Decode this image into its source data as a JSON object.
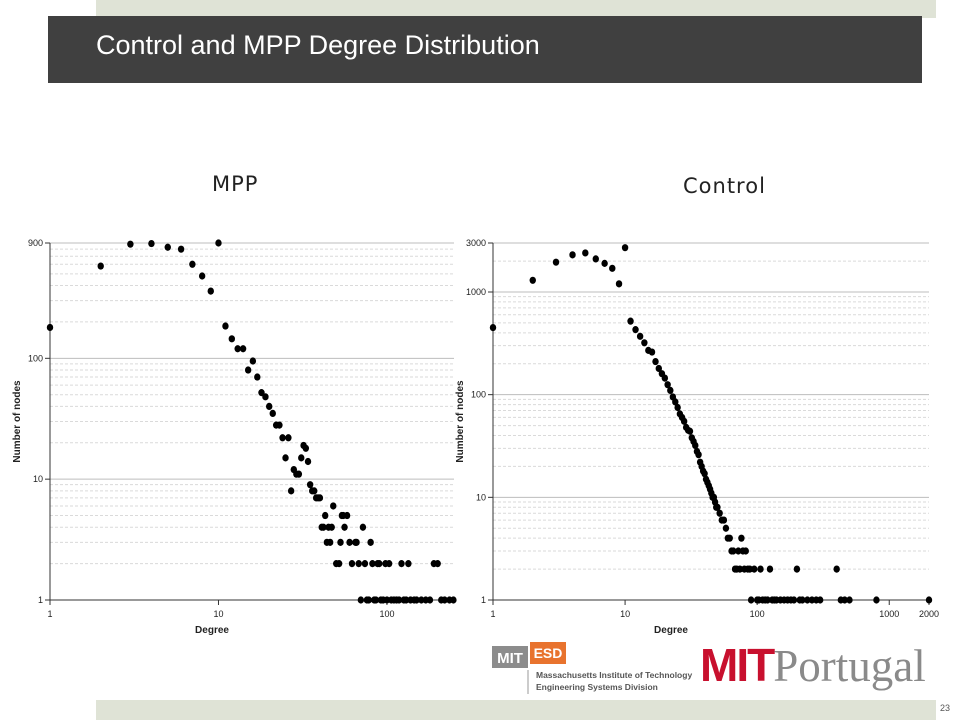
{
  "slide": {
    "title": "Control and MPP Degree Distribution",
    "page_number": "23"
  },
  "panels": {
    "left_label": "MPP",
    "right_label": "Control"
  },
  "logos": {
    "esd_mit": "MIT",
    "esd_esd": "ESD",
    "esd_line1": "Massachusetts Institute of Technology",
    "esd_line2": "Engineering Systems Division",
    "mitp_mit": "MIT",
    "mitp_portugal": "Portugal"
  },
  "colors": {
    "title_bar": "#404040",
    "strip": "#dfe3d6",
    "esd_orange": "#e8732e",
    "mit_red": "#c8102e"
  },
  "chart_data": [
    {
      "type": "scatter",
      "panel_label": "MPP",
      "xlabel": "Degree",
      "ylabel": "Number of nodes",
      "x_scale": "log",
      "y_scale": "log",
      "xlim": [
        1,
        250
      ],
      "ylim": [
        1,
        900
      ],
      "x_ticks": [
        "1",
        "10",
        "100"
      ],
      "y_ticks": [
        "1",
        "10",
        "100",
        "900"
      ],
      "grid": true,
      "points": [
        [
          1,
          180
        ],
        [
          2,
          580
        ],
        [
          3,
          880
        ],
        [
          4,
          890
        ],
        [
          5,
          830
        ],
        [
          6,
          800
        ],
        [
          7,
          600
        ],
        [
          8,
          480
        ],
        [
          9,
          360
        ],
        [
          10,
          900
        ],
        [
          11,
          185
        ],
        [
          12,
          145
        ],
        [
          13,
          120
        ],
        [
          14,
          120
        ],
        [
          15,
          80
        ],
        [
          16,
          95
        ],
        [
          17,
          70
        ],
        [
          18,
          52
        ],
        [
          19,
          48
        ],
        [
          20,
          40
        ],
        [
          21,
          35
        ],
        [
          22,
          28
        ],
        [
          23,
          28
        ],
        [
          24,
          22
        ],
        [
          25,
          15
        ],
        [
          26,
          22
        ],
        [
          27,
          8
        ],
        [
          28,
          12
        ],
        [
          29,
          11
        ],
        [
          30,
          11
        ],
        [
          31,
          15
        ],
        [
          32,
          19
        ],
        [
          33,
          18
        ],
        [
          34,
          14
        ],
        [
          35,
          9
        ],
        [
          36,
          8
        ],
        [
          37,
          8
        ],
        [
          38,
          7
        ],
        [
          39,
          7
        ],
        [
          40,
          7
        ],
        [
          41,
          4
        ],
        [
          42,
          4
        ],
        [
          43,
          5
        ],
        [
          44,
          3
        ],
        [
          45,
          4
        ],
        [
          46,
          3
        ],
        [
          47,
          4
        ],
        [
          48,
          6
        ],
        [
          50,
          2
        ],
        [
          52,
          2
        ],
        [
          53,
          3
        ],
        [
          54,
          5
        ],
        [
          55,
          5
        ],
        [
          56,
          4
        ],
        [
          58,
          5
        ],
        [
          60,
          3
        ],
        [
          62,
          2
        ],
        [
          65,
          3
        ],
        [
          66,
          3
        ],
        [
          68,
          2
        ],
        [
          70,
          1
        ],
        [
          72,
          4
        ],
        [
          74,
          2
        ],
        [
          76,
          1
        ],
        [
          78,
          1
        ],
        [
          80,
          3
        ],
        [
          82,
          2
        ],
        [
          84,
          1
        ],
        [
          86,
          1
        ],
        [
          88,
          2
        ],
        [
          90,
          2
        ],
        [
          92,
          1
        ],
        [
          95,
          1
        ],
        [
          98,
          2
        ],
        [
          100,
          1
        ],
        [
          103,
          2
        ],
        [
          106,
          1
        ],
        [
          110,
          1
        ],
        [
          114,
          1
        ],
        [
          118,
          1
        ],
        [
          122,
          2
        ],
        [
          126,
          1
        ],
        [
          130,
          1
        ],
        [
          134,
          2
        ],
        [
          138,
          1
        ],
        [
          145,
          1
        ],
        [
          150,
          1
        ],
        [
          160,
          1
        ],
        [
          170,
          1
        ],
        [
          180,
          1
        ],
        [
          190,
          2
        ],
        [
          200,
          2
        ],
        [
          210,
          1
        ],
        [
          220,
          1
        ],
        [
          235,
          1
        ],
        [
          248,
          1
        ]
      ]
    },
    {
      "type": "scatter",
      "panel_label": "Control",
      "xlabel": "Degree",
      "ylabel": "Number of nodes",
      "x_scale": "log",
      "y_scale": "log",
      "xlim": [
        1,
        2000
      ],
      "ylim": [
        1,
        3000
      ],
      "x_ticks": [
        "1",
        "10",
        "100",
        "1000",
        "2000"
      ],
      "y_ticks": [
        "1",
        "10",
        "100",
        "1000",
        "3000"
      ],
      "grid": true,
      "points": [
        [
          1,
          450
        ],
        [
          2,
          1300
        ],
        [
          3,
          1950
        ],
        [
          4,
          2300
        ],
        [
          5,
          2400
        ],
        [
          6,
          2100
        ],
        [
          7,
          1900
        ],
        [
          8,
          1700
        ],
        [
          9,
          1200
        ],
        [
          10,
          2700
        ],
        [
          11,
          520
        ],
        [
          12,
          430
        ],
        [
          13,
          370
        ],
        [
          14,
          320
        ],
        [
          15,
          270
        ],
        [
          16,
          260
        ],
        [
          17,
          210
        ],
        [
          18,
          180
        ],
        [
          19,
          160
        ],
        [
          20,
          145
        ],
        [
          21,
          125
        ],
        [
          22,
          110
        ],
        [
          23,
          95
        ],
        [
          24,
          85
        ],
        [
          25,
          75
        ],
        [
          26,
          65
        ],
        [
          27,
          60
        ],
        [
          28,
          55
        ],
        [
          29,
          48
        ],
        [
          30,
          45
        ],
        [
          31,
          44
        ],
        [
          32,
          38
        ],
        [
          33,
          35
        ],
        [
          34,
          32
        ],
        [
          35,
          28
        ],
        [
          36,
          26
        ],
        [
          37,
          22
        ],
        [
          38,
          20
        ],
        [
          39,
          18
        ],
        [
          40,
          17
        ],
        [
          41,
          15
        ],
        [
          42,
          14
        ],
        [
          43,
          13
        ],
        [
          44,
          12
        ],
        [
          45,
          11
        ],
        [
          46,
          10
        ],
        [
          47,
          10
        ],
        [
          48,
          9
        ],
        [
          49,
          8
        ],
        [
          50,
          8
        ],
        [
          52,
          7
        ],
        [
          54,
          6
        ],
        [
          56,
          6
        ],
        [
          58,
          5
        ],
        [
          60,
          4
        ],
        [
          62,
          4
        ],
        [
          64,
          3
        ],
        [
          66,
          3
        ],
        [
          68,
          2
        ],
        [
          70,
          2
        ],
        [
          72,
          3
        ],
        [
          74,
          2
        ],
        [
          76,
          4
        ],
        [
          78,
          3
        ],
        [
          80,
          2
        ],
        [
          82,
          3
        ],
        [
          85,
          2
        ],
        [
          88,
          2
        ],
        [
          90,
          1
        ],
        [
          95,
          2
        ],
        [
          100,
          1
        ],
        [
          103,
          1
        ],
        [
          106,
          2
        ],
        [
          110,
          1
        ],
        [
          115,
          1
        ],
        [
          120,
          1
        ],
        [
          125,
          2
        ],
        [
          130,
          1
        ],
        [
          135,
          1
        ],
        [
          140,
          1
        ],
        [
          150,
          1
        ],
        [
          160,
          1
        ],
        [
          170,
          1
        ],
        [
          180,
          1
        ],
        [
          190,
          1
        ],
        [
          200,
          2
        ],
        [
          210,
          1
        ],
        [
          220,
          1
        ],
        [
          240,
          1
        ],
        [
          260,
          1
        ],
        [
          280,
          1
        ],
        [
          300,
          1
        ],
        [
          400,
          2
        ],
        [
          430,
          1
        ],
        [
          460,
          1
        ],
        [
          500,
          1
        ],
        [
          800,
          1
        ],
        [
          2000,
          1
        ]
      ]
    }
  ]
}
